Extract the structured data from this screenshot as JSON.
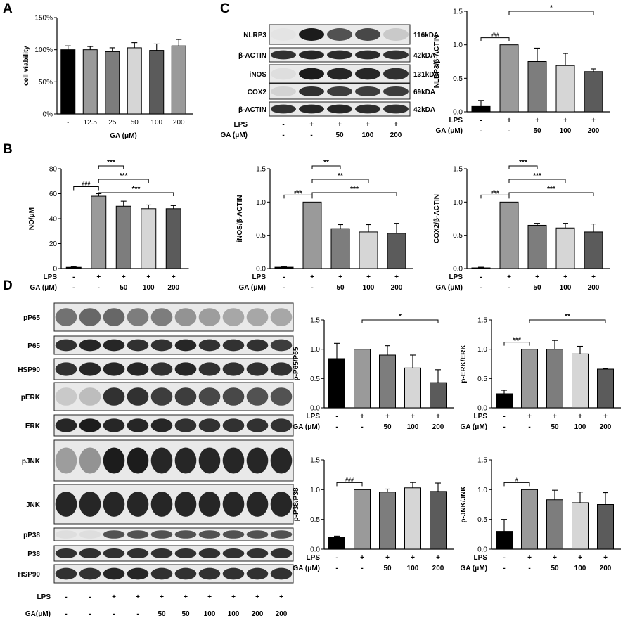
{
  "colors": {
    "black": "#000000",
    "g1": "#9a9a9a",
    "g2": "#7d7d7d",
    "g3": "#d6d6d6",
    "g4": "#5b5b5b"
  },
  "panels": {
    "A": "A",
    "B": "B",
    "C": "C",
    "D": "D"
  },
  "blots_c": {
    "rows": [
      {
        "label": "NLRP3",
        "kda": "116kDA"
      },
      {
        "label": "β-ACTIN",
        "kda": "42kDA"
      },
      {
        "label": "iNOS",
        "kda": "131kDA"
      },
      {
        "label": "COX2",
        "kda": "69kDA"
      },
      {
        "label": "β-ACTIN",
        "kda": "42kDA"
      }
    ]
  },
  "blots_d": {
    "rows": [
      "pP65",
      "P65",
      "HSP90",
      "pERK",
      "ERK",
      "pJNK",
      "JNK",
      "pP38",
      "P38",
      "HSP90"
    ],
    "lps": [
      "-",
      "-",
      "+",
      "+",
      "+",
      "+",
      "+",
      "+",
      "+",
      "+"
    ],
    "ga": [
      "-",
      "-",
      "-",
      "-",
      "50",
      "50",
      "100",
      "100",
      "200",
      "200"
    ],
    "lps_label": "LPS",
    "ga_label": "GA(μM)"
  },
  "cond_labels": {
    "lps": "LPS",
    "ga": "GA (μM)",
    "lps_values": [
      "-",
      "+",
      "+",
      "+",
      "+"
    ],
    "ga_values": [
      "-",
      "-",
      "50",
      "100",
      "200"
    ]
  },
  "chart_data": [
    {
      "id": "A",
      "type": "bar",
      "categories": [
        "-",
        "12.5",
        "25",
        "50",
        "100",
        "200"
      ],
      "values": [
        100,
        100,
        97,
        103,
        99,
        106
      ],
      "errors": [
        6,
        5,
        6,
        8,
        10,
        10
      ],
      "colors": [
        "black",
        "g1",
        "g2",
        "g3",
        "g4",
        "g1"
      ],
      "xlabel": "GA (μM)",
      "ylabel": "cell viability",
      "ylim": [
        0,
        150
      ],
      "yticks": [
        "0%",
        "50%",
        "100%",
        "150%"
      ],
      "ytick_values": [
        0,
        50,
        100,
        150
      ]
    },
    {
      "id": "B",
      "type": "bar",
      "values": [
        1,
        58,
        50,
        48,
        48
      ],
      "errors": [
        0.5,
        2,
        4,
        3,
        2.5
      ],
      "colors": [
        "black",
        "g1",
        "g2",
        "g3",
        "g4"
      ],
      "ylabel": "NO/μM",
      "ylim": [
        0,
        80
      ],
      "ytick_values": [
        0,
        20,
        40,
        60,
        80
      ],
      "yticks": [
        "0",
        "20",
        "40",
        "60",
        "80"
      ],
      "brackets": [
        {
          "from": 0,
          "to": 1,
          "label": "###",
          "level": 0
        },
        {
          "from": 1,
          "to": 2,
          "label": "***",
          "level": 0
        },
        {
          "from": 1,
          "to": 3,
          "label": "***",
          "level": 1
        },
        {
          "from": 1,
          "to": 4,
          "label": "***",
          "level": 2
        }
      ]
    },
    {
      "id": "C1",
      "type": "bar",
      "values": [
        0.08,
        1.0,
        0.75,
        0.69,
        0.6
      ],
      "errors": [
        0.09,
        0,
        0.2,
        0.18,
        0.04
      ],
      "colors": [
        "black",
        "g1",
        "g2",
        "g3",
        "g4"
      ],
      "ylabel": "NLRP3/β-ACTIN",
      "ylim": [
        0,
        1.5
      ],
      "ytick_values": [
        0,
        0.5,
        1.0,
        1.5
      ],
      "yticks": [
        "0.0",
        "0.5",
        "1.0",
        "1.5"
      ],
      "brackets": [
        {
          "from": 0,
          "to": 1,
          "label": "###",
          "level": 0
        },
        {
          "from": 1,
          "to": 4,
          "label": "*",
          "level": 0
        }
      ]
    },
    {
      "id": "C2",
      "type": "bar",
      "values": [
        0.02,
        1.0,
        0.6,
        0.55,
        0.53
      ],
      "errors": [
        0.01,
        0,
        0.06,
        0.11,
        0.15
      ],
      "colors": [
        "black",
        "g1",
        "g2",
        "g3",
        "g4"
      ],
      "ylabel": "iNOS/β-ACTIN",
      "ylim": [
        0,
        1.5
      ],
      "ytick_values": [
        0,
        0.5,
        1.0,
        1.5
      ],
      "yticks": [
        "0.0",
        "0.5",
        "1.0",
        "1.5"
      ],
      "brackets": [
        {
          "from": 0,
          "to": 1,
          "label": "###",
          "level": 0
        },
        {
          "from": 1,
          "to": 2,
          "label": "**",
          "level": 0
        },
        {
          "from": 1,
          "to": 3,
          "label": "**",
          "level": 1
        },
        {
          "from": 1,
          "to": 4,
          "label": "***",
          "level": 2
        }
      ]
    },
    {
      "id": "C3",
      "type": "bar",
      "values": [
        0.01,
        1.0,
        0.65,
        0.61,
        0.55
      ],
      "errors": [
        0.01,
        0,
        0.03,
        0.07,
        0.12
      ],
      "colors": [
        "black",
        "g1",
        "g2",
        "g3",
        "g4"
      ],
      "ylabel": "COX2/β-ACTIN",
      "ylim": [
        0,
        1.5
      ],
      "ytick_values": [
        0,
        0.5,
        1.0,
        1.5
      ],
      "yticks": [
        "0.0",
        "0.5",
        "1.0",
        "1.5"
      ],
      "brackets": [
        {
          "from": 0,
          "to": 1,
          "label": "###",
          "level": 0
        },
        {
          "from": 1,
          "to": 2,
          "label": "***",
          "level": 0
        },
        {
          "from": 1,
          "to": 3,
          "label": "***",
          "level": 1
        },
        {
          "from": 1,
          "to": 4,
          "label": "***",
          "level": 2
        }
      ]
    },
    {
      "id": "D1",
      "type": "bar",
      "values": [
        0.84,
        1.0,
        0.9,
        0.68,
        0.43
      ],
      "errors": [
        0.26,
        0,
        0.16,
        0.22,
        0.22
      ],
      "colors": [
        "black",
        "g1",
        "g2",
        "g3",
        "g4"
      ],
      "ylabel": "p-P65/P65",
      "ylim": [
        0,
        1.5
      ],
      "ytick_values": [
        0,
        0.5,
        1.0,
        1.5
      ],
      "yticks": [
        "0.0",
        "0.5",
        "1.0",
        "1.5"
      ],
      "brackets": [
        {
          "from": 1,
          "to": 4,
          "label": "*",
          "level": 0
        }
      ]
    },
    {
      "id": "D2",
      "type": "bar",
      "values": [
        0.24,
        1.0,
        1.0,
        0.92,
        0.66
      ],
      "errors": [
        0.06,
        0,
        0.15,
        0.13,
        0.01
      ],
      "colors": [
        "black",
        "g1",
        "g2",
        "g3",
        "g4"
      ],
      "ylabel": "p-ERK/ERK",
      "ylim": [
        0,
        1.5
      ],
      "ytick_values": [
        0,
        0.5,
        1.0,
        1.5
      ],
      "yticks": [
        "0.0",
        "0.5",
        "1.0",
        "1.5"
      ],
      "brackets": [
        {
          "from": 0,
          "to": 1,
          "label": "###",
          "level": 0
        },
        {
          "from": 1,
          "to": 4,
          "label": "**",
          "level": 0
        }
      ]
    },
    {
      "id": "D3",
      "type": "bar",
      "values": [
        0.2,
        1.0,
        0.96,
        1.03,
        0.97
      ],
      "errors": [
        0.02,
        0,
        0.05,
        0.09,
        0.14
      ],
      "colors": [
        "black",
        "g1",
        "g2",
        "g3",
        "g4"
      ],
      "ylabel": "p-P38/P38",
      "ylim": [
        0,
        1.5
      ],
      "ytick_values": [
        0,
        0.5,
        1.0,
        1.5
      ],
      "yticks": [
        "0.0",
        "0.5",
        "1.0",
        "1.5"
      ],
      "brackets": [
        {
          "from": 0,
          "to": 1,
          "label": "###",
          "level": 0
        }
      ]
    },
    {
      "id": "D4",
      "type": "bar",
      "values": [
        0.3,
        1.0,
        0.83,
        0.78,
        0.75
      ],
      "errors": [
        0.2,
        0,
        0.16,
        0.18,
        0.2
      ],
      "colors": [
        "black",
        "g1",
        "g2",
        "g3",
        "g4"
      ],
      "ylabel": "p-JNK/JNK",
      "ylim": [
        0,
        1.5
      ],
      "ytick_values": [
        0,
        0.5,
        1.0,
        1.5
      ],
      "yticks": [
        "0.0",
        "0.5",
        "1.0",
        "1.5"
      ],
      "brackets": [
        {
          "from": 0,
          "to": 1,
          "label": "#",
          "level": 0
        }
      ]
    }
  ]
}
